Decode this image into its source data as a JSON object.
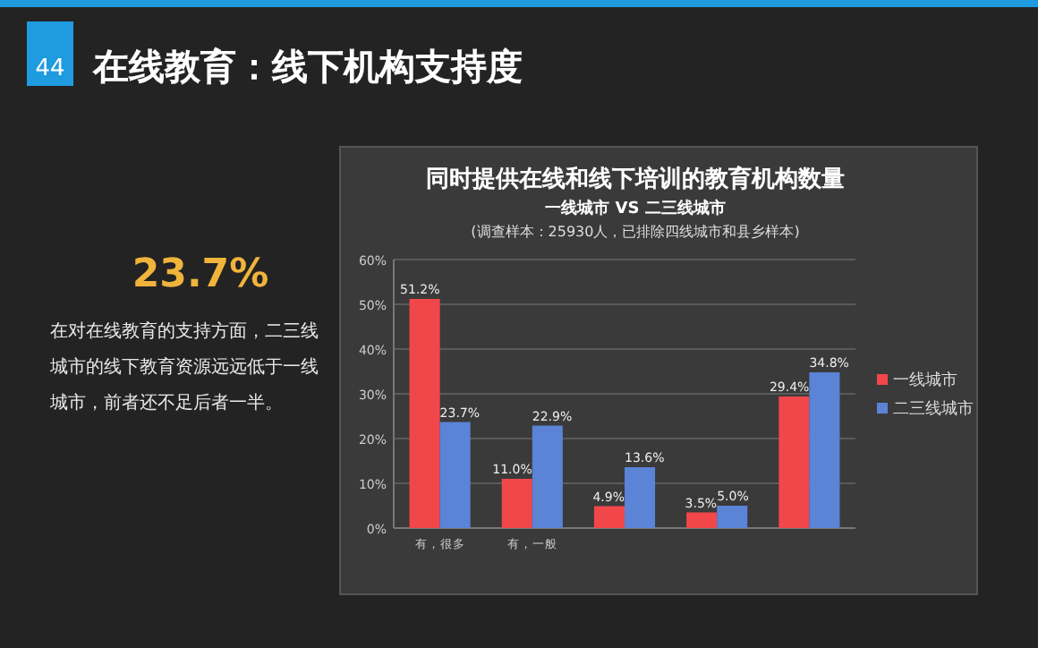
{
  "chart_data": {
    "type": "bar",
    "title": "同时提供在线和线下培训的教育机构数量",
    "subtitle": "一线城市 VS 二三线城市",
    "annotations": [
      "(调查样本：25930人，已排除四线城市和县乡样本)",
      "44",
      "在线教育：线下机构支持度",
      "23.7%",
      "在对在线教育的支持方面，二三线城市的线下教育资源远远低于一线城市，前者还不足后者一半。"
    ],
    "categories": [
      "有，很多",
      "有，一般",
      null,
      null,
      null
    ],
    "series": [
      {
        "name": "一线城市",
        "color": "#f2474a",
        "values": [
          51.2,
          11.0,
          4.9,
          3.5,
          29.4
        ],
        "value_labels": [
          "51.2%",
          "11.0%",
          "4.9%",
          "3.5%",
          "29.4%"
        ]
      },
      {
        "name": "二三线城市",
        "color": "#5b83d6",
        "values": [
          23.7,
          22.9,
          13.6,
          5.0,
          34.8
        ],
        "value_labels": [
          "23.7%",
          "22.9%",
          "13.6%",
          "5.0%",
          "34.8%"
        ]
      }
    ],
    "ylim": [
      0,
      60
    ],
    "yticks": [
      {
        "value": 0,
        "label": "0%"
      },
      {
        "value": 10,
        "label": "10%"
      },
      {
        "value": 20,
        "label": "20%"
      },
      {
        "value": 30,
        "label": "30%"
      },
      {
        "value": 40,
        "label": "40%"
      },
      {
        "value": 50,
        "label": "50%"
      },
      {
        "value": 60,
        "label": "60%"
      }
    ],
    "grid": "y",
    "legend": "right"
  }
}
